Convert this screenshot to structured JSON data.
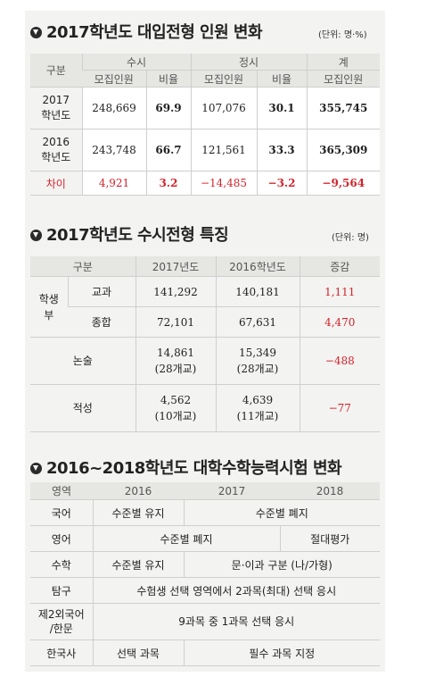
{
  "section1": {
    "title": "2017학년도 대입전형 인원 변화",
    "unit": "(단위: 명·%)",
    "head": {
      "category": "구분",
      "susi": "수시",
      "jeongsi": "정시",
      "total": "계",
      "recruit": "모집인원",
      "ratio": "비율"
    },
    "rows": [
      {
        "label": [
          "2017",
          "학년도"
        ],
        "susi_n": "248,669",
        "susi_r": "69.9",
        "jeong_n": "107,076",
        "jeong_r": "30.1",
        "total": "355,745"
      },
      {
        "label": [
          "2016",
          "학년도"
        ],
        "susi_n": "243,748",
        "susi_r": "66.7",
        "jeong_n": "121,561",
        "jeong_r": "33.3",
        "total": "365,309"
      }
    ],
    "diff": {
      "label": "차이",
      "susi_n": "4,921",
      "susi_r": "3.2",
      "jeong_n": "−14,485",
      "jeong_r": "−3.2",
      "total": "−9,564"
    }
  },
  "section2": {
    "title": "2017학년도 수시전형 특징",
    "unit": "(단위: 명)",
    "head": {
      "category": "구분",
      "y2017": "2017년도",
      "y2016": "2016학년도",
      "change": "증감"
    },
    "group_label": [
      "학생",
      "부"
    ],
    "rows": [
      {
        "sub": "교과",
        "v2017": "141,292",
        "v2016": "140,181",
        "change": "1,111"
      },
      {
        "sub": "종합",
        "v2017": "72,101",
        "v2016": "67,631",
        "change": "4,470"
      },
      {
        "label": "논술",
        "v2017": "14,861",
        "v2017b": "(28개교)",
        "v2016": "15,349",
        "v2016b": "(28개교)",
        "change": "−488"
      },
      {
        "label": "적성",
        "v2017": "4,562",
        "v2017b": "(10개교)",
        "v2016": "4,639",
        "v2016b": "(11개교)",
        "change": "−77"
      }
    ]
  },
  "section3": {
    "title": "2016~2018학년도 대학수학능력시험 변화",
    "head": {
      "area": "영역",
      "y2016": "2016",
      "y2017": "2017",
      "y2018": "2018"
    },
    "rows": [
      {
        "area": "국어",
        "a": "수준별 유지",
        "b": "수준별 폐지"
      },
      {
        "area": "영어",
        "a": "수준별 폐지",
        "b": "절대평가"
      },
      {
        "area": "수학",
        "a": "수준별 유지",
        "b": "문·이과 구분 (나/가형)"
      },
      {
        "area": "탐구",
        "a": "수험생 선택 영역에서 2과목(최대) 선택 응시"
      },
      {
        "area": [
          "제2외국어",
          "/한문"
        ],
        "a": "9과목 중 1과목 선택 응시"
      },
      {
        "area": "한국사",
        "a": "선택 과목",
        "b": "필수 과목 지정"
      }
    ]
  }
}
